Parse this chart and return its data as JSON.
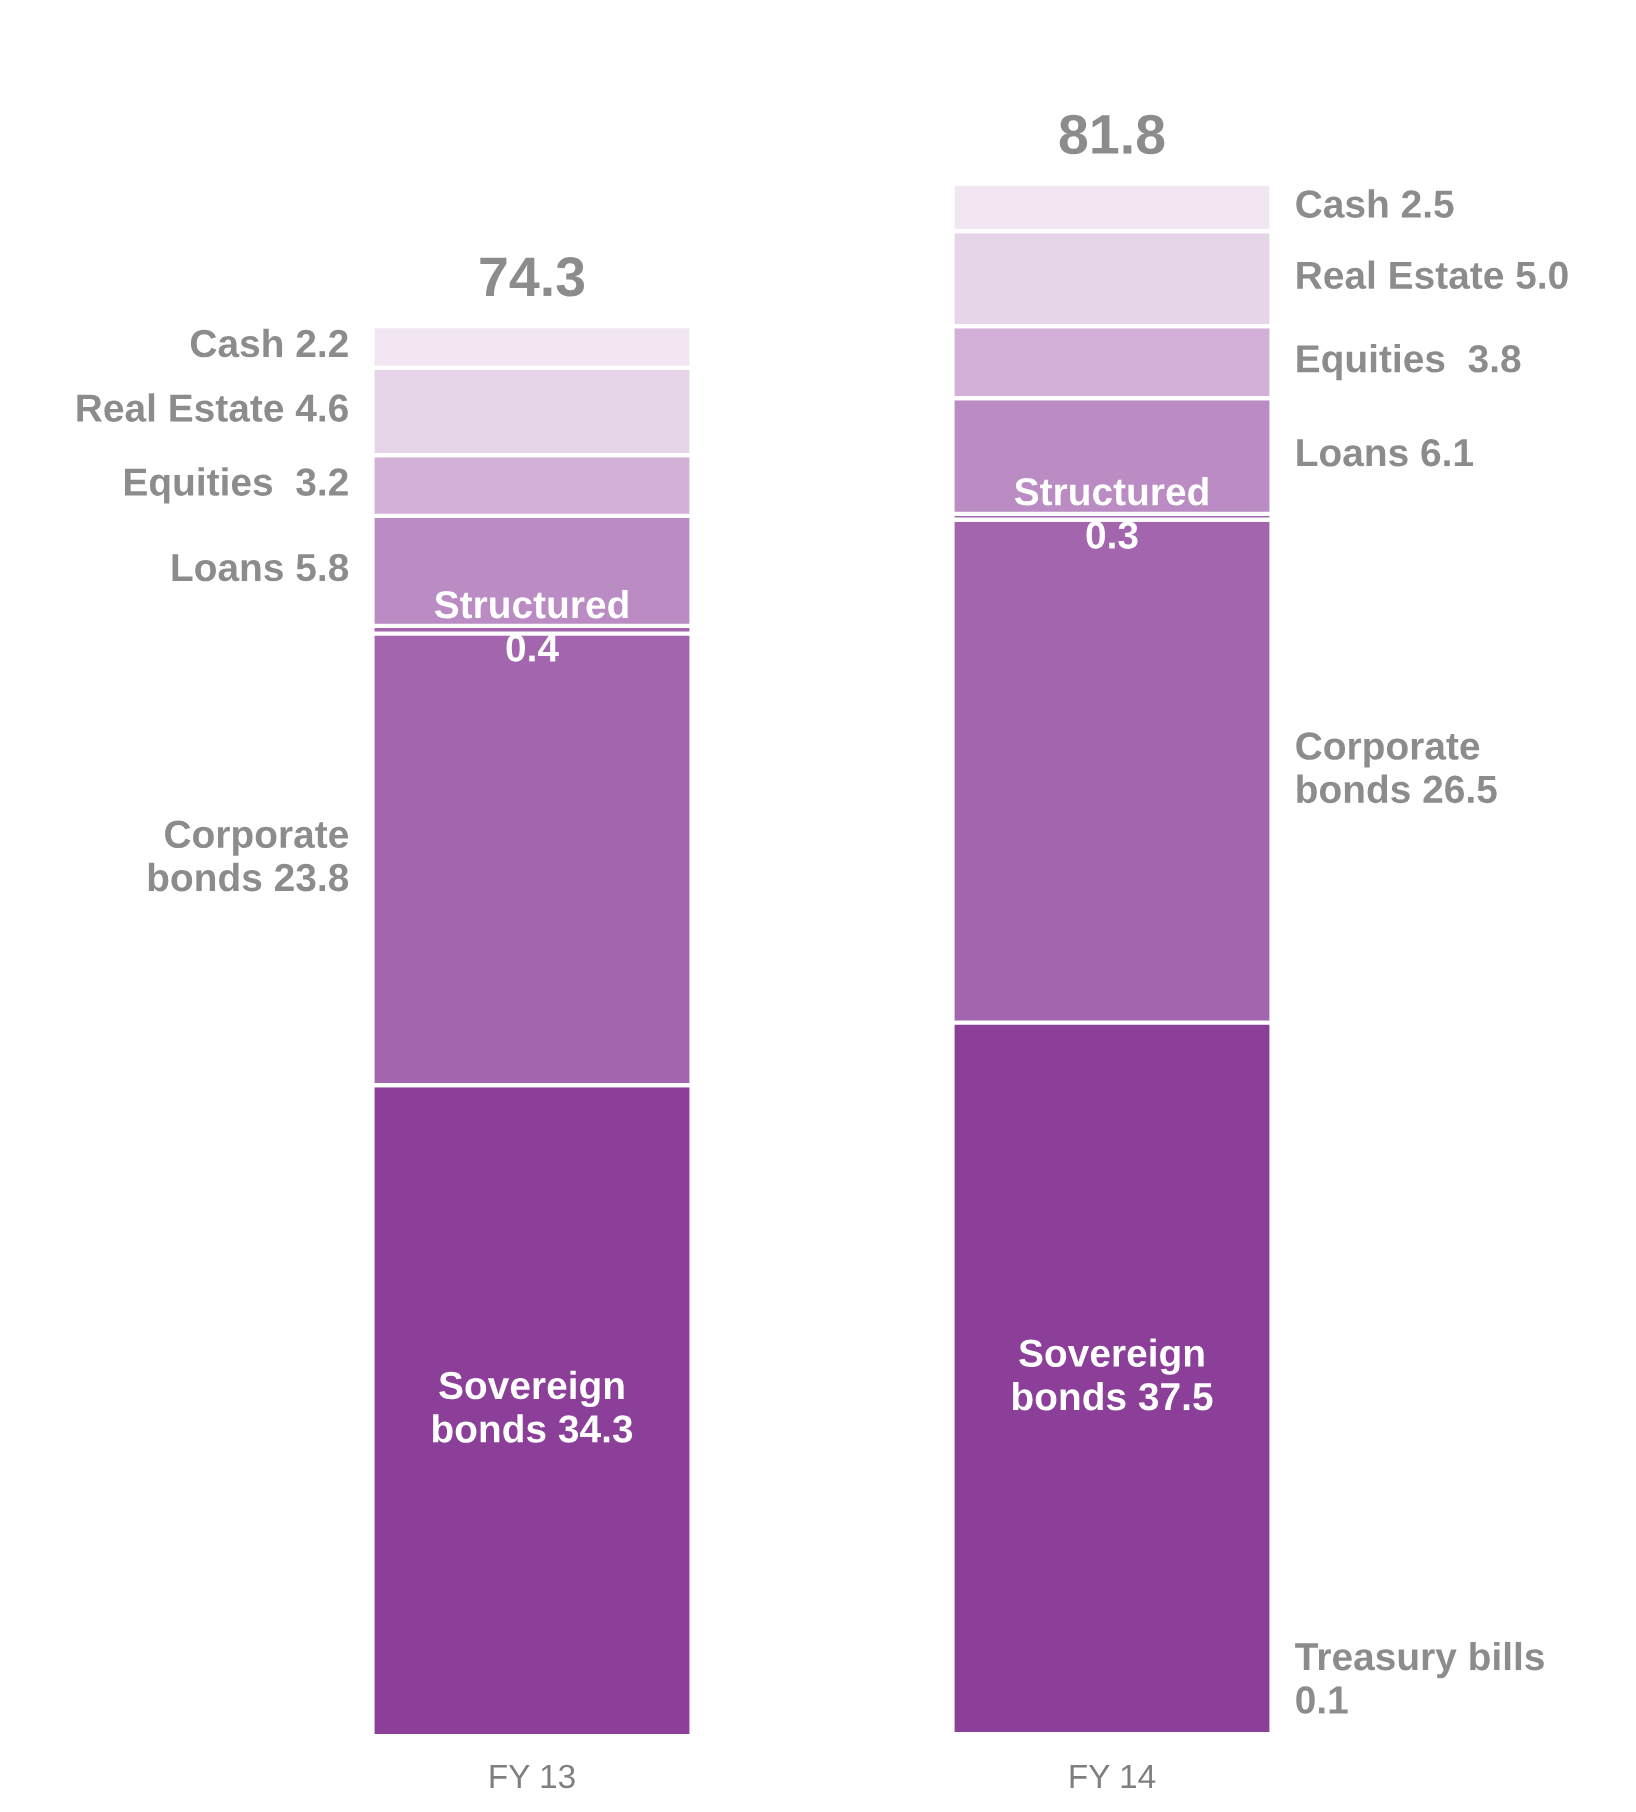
{
  "chart_data": {
    "type": "bar",
    "stacked": true,
    "categories": [
      "FY 13",
      "FY 14"
    ],
    "series": [
      {
        "color": "#8b3f98",
        "values": [
          null,
          0.1
        ]
      },
      {
        "color": "#8b3f98",
        "values": [
          34.3,
          37.5
        ],
        "value_labels": [
          "Sovereign\nbonds 34.3",
          "Sovereign\nbonds 37.5"
        ]
      },
      {
        "color": "#a366ae",
        "values": [
          23.8,
          26.5
        ]
      },
      {
        "color": "#a366ae",
        "values": [
          0.4,
          0.3
        ],
        "value_labels": [
          "Structured\n0.4",
          "Structured\n0.3"
        ]
      },
      {
        "color": "#bb8cc4",
        "values": [
          5.8,
          6.1
        ]
      },
      {
        "color": "#d3b0d8",
        "values": [
          3.2,
          3.8
        ]
      },
      {
        "color": "#e6d5e8",
        "values": [
          4.6,
          5.0
        ]
      },
      {
        "color": "#f1e6f1",
        "values": [
          2.2,
          2.5
        ]
      }
    ],
    "annotations": [
      "Corporate\nbonds 23.8",
      "Loans 5.8",
      "Equities  3.2",
      "Real Estate 4.6",
      "Cash 2.2",
      "Treasury bills\n0.1",
      "Corporate\nbonds 26.5",
      "Loans 6.1",
      "Equities  3.8",
      "Real Estate 5.0",
      "Cash 2.5"
    ],
    "totals": [
      "74.3",
      "81.8"
    ]
  }
}
